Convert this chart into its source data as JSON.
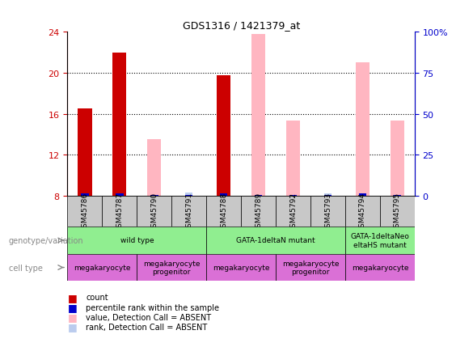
{
  "title": "GDS1316 / 1421379_at",
  "samples": [
    "GSM45786",
    "GSM45787",
    "GSM45790",
    "GSM45791",
    "GSM45788",
    "GSM45789",
    "GSM45792",
    "GSM45793",
    "GSM45794",
    "GSM45795"
  ],
  "count_values": [
    16.5,
    22.0,
    null,
    null,
    19.8,
    null,
    null,
    null,
    null,
    null
  ],
  "rank_values": [
    8.2,
    8.2,
    8.1,
    8.1,
    8.2,
    8.1,
    8.1,
    8.1,
    8.2,
    8.1
  ],
  "absent_value": [
    null,
    null,
    13.5,
    null,
    null,
    23.8,
    15.3,
    null,
    21.0,
    15.3
  ],
  "absent_rank": [
    null,
    null,
    null,
    8.3,
    null,
    null,
    null,
    8.2,
    null,
    null
  ],
  "ylim_left": [
    8,
    24
  ],
  "ylim_right": [
    0,
    100
  ],
  "yticks_left": [
    8,
    12,
    16,
    20,
    24
  ],
  "yticks_right": [
    0,
    25,
    50,
    75,
    100
  ],
  "yticklabels_right": [
    "0",
    "25",
    "50",
    "75",
    "100%"
  ],
  "bar_width": 0.4,
  "count_color": "#CC0000",
  "rank_color": "#0000CC",
  "absent_value_color": "#FFB6C1",
  "absent_rank_color": "#BBCCEE",
  "background_color": "#ffffff",
  "left_axis_color": "#CC0000",
  "right_axis_color": "#0000CC",
  "sample_row_color": "#C8C8C8",
  "genotype_color": "#90EE90",
  "cell_color": "#DA70D6"
}
